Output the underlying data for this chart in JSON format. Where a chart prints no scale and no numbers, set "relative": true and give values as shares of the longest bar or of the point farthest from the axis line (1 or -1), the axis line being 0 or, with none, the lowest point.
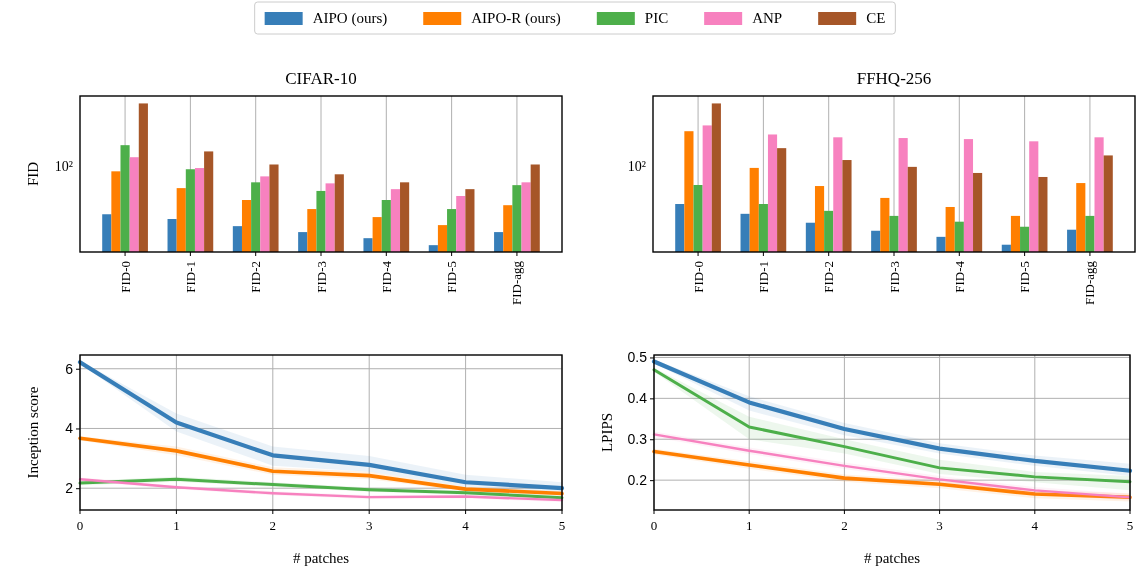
{
  "chart_data": [
    {
      "type": "bar",
      "title": "CIFAR-10",
      "ylabel": "FID",
      "categories": [
        "FID-0",
        "FID-1",
        "FID-2",
        "FID-3",
        "FID-4",
        "FID-5",
        "FID-agg"
      ],
      "relative": true,
      "grid": true,
      "legend": "top",
      "annotations": [
        "10²"
      ],
      "series": [
        {
          "name": "AIPO (ours)",
          "color": "#377eb8",
          "values": [
            0.254,
            0.222,
            0.174,
            0.134,
            0.093,
            0.046,
            0.134
          ]
        },
        {
          "name": "AIPO-R (ours)",
          "color": "#ff7f00",
          "values": [
            0.543,
            0.43,
            0.35,
            0.289,
            0.235,
            0.181,
            0.315
          ]
        },
        {
          "name": "PIC",
          "color": "#4daf4a",
          "values": [
            0.719,
            0.557,
            0.469,
            0.411,
            0.35,
            0.289,
            0.45
          ]
        },
        {
          "name": "ANP",
          "color": "#f781bf",
          "values": [
            0.638,
            0.565,
            0.509,
            0.462,
            0.423,
            0.377,
            0.469
          ]
        },
        {
          "name": "CE",
          "color": "#a65628",
          "values": [
            1,
            0.677,
            0.589,
            0.523,
            0.469,
            0.423,
            0.589
          ]
        }
      ]
    },
    {
      "type": "bar",
      "title": "FFHQ-256",
      "categories": [
        "FID-0",
        "FID-1",
        "FID-2",
        "FID-3",
        "FID-4",
        "FID-5",
        "FID-agg"
      ],
      "relative": true,
      "grid": true,
      "annotations": [
        "10²"
      ],
      "series": [
        {
          "color": "#377eb8",
          "values": [
            0.323,
            0.257,
            0.197,
            0.143,
            0.102,
            0.049,
            0.15
          ]
        },
        {
          "color": "#ff7f00",
          "values": [
            0.813,
            0.566,
            0.444,
            0.364,
            0.303,
            0.243,
            0.464
          ]
        },
        {
          "color": "#4daf4a",
          "values": [
            0.451,
            0.323,
            0.277,
            0.243,
            0.204,
            0.17,
            0.243
          ]
        },
        {
          "color": "#f781bf",
          "values": [
            0.852,
            0.791,
            0.772,
            0.767,
            0.76,
            0.745,
            0.772
          ]
        },
        {
          "color": "#a65628",
          "values": [
            1,
            0.699,
            0.619,
            0.573,
            0.532,
            0.505,
            0.65
          ]
        }
      ]
    },
    {
      "type": "line",
      "xlabel": "# patches",
      "ylabel": "Inception score",
      "x": [
        0,
        1,
        2,
        3,
        4,
        5
      ],
      "xlim": [
        0,
        5
      ],
      "xticks": [
        0,
        1,
        2,
        3,
        4,
        5
      ],
      "ylim": [
        1.27,
        6.46
      ],
      "yticks": [
        2,
        4,
        6
      ],
      "grid": true,
      "series": [
        {
          "color": "#377eb8",
          "values": [
            6.22,
            4.2,
            3.1,
            2.78,
            2.2,
            2.0
          ],
          "lower": [
            6.17,
            3.9,
            2.75,
            2.55,
            2.05,
            1.85
          ],
          "upper": [
            6.27,
            4.5,
            3.4,
            3.08,
            2.45,
            2.2
          ]
        },
        {
          "color": "#ff7f00",
          "values": [
            3.67,
            3.25,
            2.57,
            2.42,
            1.97,
            1.82
          ],
          "lower": [
            3.6,
            3.1,
            2.45,
            2.3,
            1.9,
            1.75
          ],
          "upper": [
            3.74,
            3.4,
            2.7,
            2.55,
            2.05,
            1.9
          ]
        },
        {
          "color": "#4daf4a",
          "values": [
            2.17,
            2.3,
            2.12,
            1.95,
            1.85,
            1.68
          ],
          "lower": [
            2.1,
            2.22,
            2.05,
            1.88,
            1.78,
            1.62
          ],
          "upper": [
            2.24,
            2.38,
            2.2,
            2.02,
            1.92,
            1.75
          ]
        },
        {
          "color": "#f781bf",
          "values": [
            2.3,
            2.03,
            1.83,
            1.7,
            1.72,
            1.6
          ],
          "lower": [
            2.24,
            1.97,
            1.76,
            1.64,
            1.66,
            1.54
          ],
          "upper": [
            2.36,
            2.09,
            1.9,
            1.76,
            1.78,
            1.66
          ]
        }
      ]
    },
    {
      "type": "line",
      "xlabel": "# patches",
      "ylabel": "LPIPS",
      "x": [
        0,
        1,
        2,
        3,
        4,
        5
      ],
      "xlim": [
        0,
        5
      ],
      "xticks": [
        0,
        1,
        2,
        3,
        4,
        5
      ],
      "ylim": [
        0.127,
        0.506
      ],
      "yticks": [
        0.2,
        0.3,
        0.4,
        0.5
      ],
      "grid": true,
      "series": [
        {
          "color": "#377eb8",
          "values": [
            0.49,
            0.39,
            0.325,
            0.277,
            0.247,
            0.223
          ],
          "lower": [
            0.485,
            0.37,
            0.31,
            0.265,
            0.235,
            0.21
          ],
          "upper": [
            0.495,
            0.405,
            0.34,
            0.29,
            0.26,
            0.24
          ]
        },
        {
          "color": "#ff7f00",
          "values": [
            0.27,
            0.237,
            0.205,
            0.19,
            0.166,
            0.158
          ],
          "lower": [
            0.263,
            0.228,
            0.196,
            0.18,
            0.156,
            0.148
          ],
          "upper": [
            0.277,
            0.246,
            0.214,
            0.2,
            0.176,
            0.168
          ]
        },
        {
          "color": "#4daf4a",
          "values": [
            0.47,
            0.33,
            0.282,
            0.23,
            0.208,
            0.196
          ],
          "lower": [
            0.465,
            0.3,
            0.265,
            0.215,
            0.195,
            0.175
          ],
          "upper": [
            0.475,
            0.355,
            0.3,
            0.25,
            0.22,
            0.21
          ]
        },
        {
          "color": "#f781bf",
          "values": [
            0.312,
            0.272,
            0.235,
            0.202,
            0.175,
            0.158
          ],
          "lower": [
            0.305,
            0.264,
            0.227,
            0.194,
            0.167,
            0.15
          ],
          "upper": [
            0.319,
            0.28,
            0.243,
            0.21,
            0.183,
            0.166
          ]
        }
      ]
    }
  ]
}
